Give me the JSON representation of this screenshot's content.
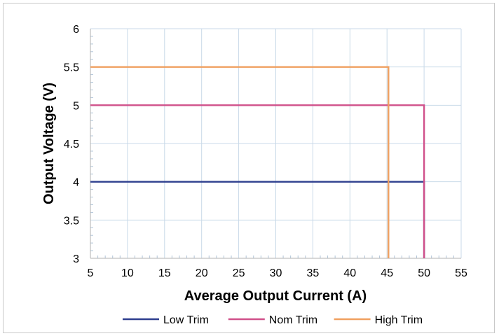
{
  "chart_data": {
    "type": "line",
    "xlabel": "Average Output Current (A)",
    "ylabel": "Output Voltage (V)",
    "xlim": [
      5,
      55
    ],
    "ylim": [
      3,
      6
    ],
    "x_ticks": [
      "5",
      "10",
      "15",
      "20",
      "25",
      "30",
      "35",
      "40",
      "45",
      "50",
      "55"
    ],
    "y_ticks": [
      "3",
      "3.5",
      "4",
      "4.5",
      "5",
      "5.5",
      "6"
    ],
    "grid": true,
    "legend_position": "bottom",
    "series": [
      {
        "name": "Low Trim",
        "color": "#2e3f8f",
        "points": [
          [
            5,
            4.0
          ],
          [
            50,
            4.0
          ],
          [
            50,
            3.0
          ]
        ]
      },
      {
        "name": "Nom Trim",
        "color": "#d0508a",
        "points": [
          [
            5,
            5.0
          ],
          [
            50,
            5.0
          ],
          [
            50,
            3.0
          ]
        ]
      },
      {
        "name": "High Trim",
        "color": "#f0a060",
        "points": [
          [
            5,
            5.5
          ],
          [
            45.2,
            5.5
          ],
          [
            45.2,
            3.0
          ]
        ]
      }
    ]
  }
}
